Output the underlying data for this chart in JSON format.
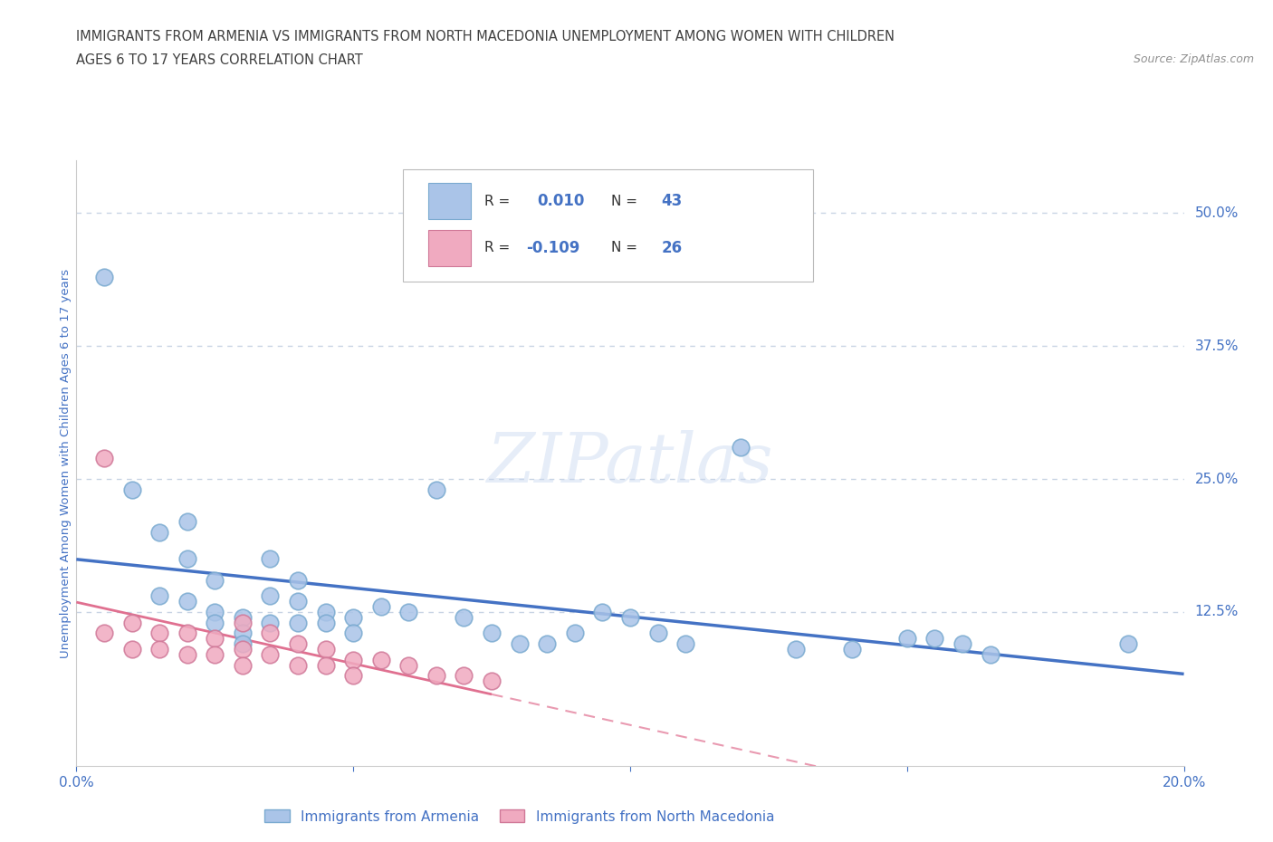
{
  "title_line1": "IMMIGRANTS FROM ARMENIA VS IMMIGRANTS FROM NORTH MACEDONIA UNEMPLOYMENT AMONG WOMEN WITH CHILDREN",
  "title_line2": "AGES 6 TO 17 YEARS CORRELATION CHART",
  "source_text": "Source: ZipAtlas.com",
  "ylabel": "Unemployment Among Women with Children Ages 6 to 17 years",
  "xlim": [
    0.0,
    0.2
  ],
  "ylim": [
    -0.02,
    0.55
  ],
  "ytick_positions": [
    0.125,
    0.25,
    0.375,
    0.5
  ],
  "ytick_labels": [
    "12.5%",
    "25.0%",
    "37.5%",
    "50.0%"
  ],
  "watermark": "ZIPatlas",
  "armenia_color": "#aac4e8",
  "armenia_edge_color": "#7aaad0",
  "macedonia_color": "#f0aac0",
  "macedonia_edge_color": "#d07898",
  "armenia_R": "0.010",
  "armenia_N": "43",
  "macedonia_R": "-0.109",
  "macedonia_N": "26",
  "legend_label_armenia": "Immigrants from Armenia",
  "legend_label_macedonia": "Immigrants from North Macedonia",
  "armenia_trend_color": "#4472c4",
  "macedonia_trend_color": "#e07090",
  "background_color": "#ffffff",
  "grid_color": "#c8d4e4",
  "text_color": "#4472c4",
  "title_color": "#404040",
  "source_color": "#909090",
  "armenia_x": [
    0.005,
    0.01,
    0.015,
    0.015,
    0.02,
    0.02,
    0.02,
    0.025,
    0.025,
    0.025,
    0.03,
    0.03,
    0.03,
    0.035,
    0.035,
    0.035,
    0.04,
    0.04,
    0.04,
    0.045,
    0.045,
    0.05,
    0.05,
    0.055,
    0.06,
    0.065,
    0.07,
    0.075,
    0.08,
    0.085,
    0.09,
    0.095,
    0.1,
    0.105,
    0.11,
    0.12,
    0.13,
    0.14,
    0.15,
    0.155,
    0.16,
    0.165,
    0.19
  ],
  "armenia_y": [
    0.44,
    0.24,
    0.2,
    0.14,
    0.21,
    0.175,
    0.135,
    0.155,
    0.125,
    0.115,
    0.12,
    0.105,
    0.095,
    0.175,
    0.14,
    0.115,
    0.155,
    0.135,
    0.115,
    0.125,
    0.115,
    0.12,
    0.105,
    0.13,
    0.125,
    0.24,
    0.12,
    0.105,
    0.095,
    0.095,
    0.105,
    0.125,
    0.12,
    0.105,
    0.095,
    0.28,
    0.09,
    0.09,
    0.1,
    0.1,
    0.095,
    0.085,
    0.095
  ],
  "macedonia_x": [
    0.005,
    0.005,
    0.01,
    0.01,
    0.015,
    0.015,
    0.02,
    0.02,
    0.025,
    0.025,
    0.03,
    0.03,
    0.03,
    0.035,
    0.035,
    0.04,
    0.04,
    0.045,
    0.045,
    0.05,
    0.05,
    0.055,
    0.06,
    0.065,
    0.07,
    0.075
  ],
  "macedonia_y": [
    0.27,
    0.105,
    0.115,
    0.09,
    0.105,
    0.09,
    0.105,
    0.085,
    0.1,
    0.085,
    0.115,
    0.09,
    0.075,
    0.105,
    0.085,
    0.095,
    0.075,
    0.09,
    0.075,
    0.08,
    0.065,
    0.08,
    0.075,
    0.065,
    0.065,
    0.06
  ]
}
